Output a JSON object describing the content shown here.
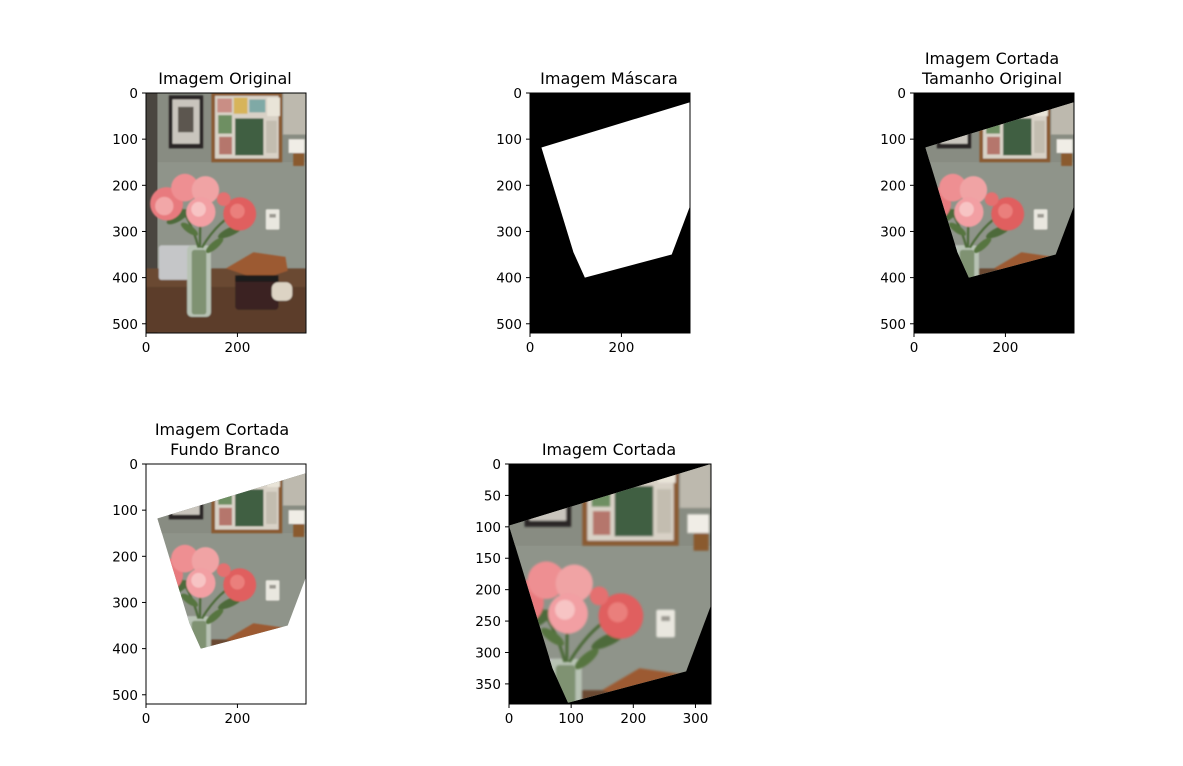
{
  "chart_data": [
    {
      "type": "image",
      "title": "Imagem Original",
      "xlim": [
        0,
        350
      ],
      "ylim": [
        520,
        0
      ],
      "xticks": [
        0,
        200
      ],
      "yticks": [
        0,
        100,
        200,
        300,
        400,
        500
      ]
    },
    {
      "type": "image",
      "title": "Imagem Máscara",
      "xlim": [
        0,
        350
      ],
      "ylim": [
        520,
        0
      ],
      "xticks": [
        0,
        200
      ],
      "yticks": [
        0,
        100,
        200,
        300,
        400,
        500
      ],
      "mask_polygon": [
        [
          25,
          118
        ],
        [
          350,
          20
        ],
        [
          350,
          245
        ],
        [
          310,
          350
        ],
        [
          120,
          400
        ],
        [
          95,
          345
        ]
      ]
    },
    {
      "type": "image",
      "title": "Imagem Cortada\nTamanho Original",
      "xlim": [
        0,
        350
      ],
      "ylim": [
        520,
        0
      ],
      "xticks": [
        0,
        200
      ],
      "yticks": [
        0,
        100,
        200,
        300,
        400,
        500
      ],
      "mask_polygon": [
        [
          25,
          118
        ],
        [
          350,
          20
        ],
        [
          350,
          245
        ],
        [
          310,
          350
        ],
        [
          120,
          400
        ],
        [
          95,
          345
        ]
      ]
    },
    {
      "type": "image",
      "title": "Imagem Cortada\nFundo Branco",
      "xlim": [
        0,
        350
      ],
      "ylim": [
        520,
        0
      ],
      "xticks": [
        0,
        200
      ],
      "yticks": [
        0,
        100,
        200,
        300,
        400,
        500
      ],
      "mask_polygon": [
        [
          25,
          118
        ],
        [
          350,
          20
        ],
        [
          350,
          245
        ],
        [
          310,
          350
        ],
        [
          120,
          400
        ],
        [
          95,
          345
        ]
      ]
    },
    {
      "type": "image",
      "title": "Imagem Cortada",
      "xlim": [
        0,
        325
      ],
      "ylim": [
        382,
        0
      ],
      "xticks": [
        0,
        100,
        200,
        300
      ],
      "yticks": [
        0,
        50,
        100,
        150,
        200,
        250,
        300,
        350
      ],
      "mask_polygon": [
        [
          0,
          98
        ],
        [
          325,
          0
        ],
        [
          325,
          225
        ],
        [
          285,
          330
        ],
        [
          95,
          380
        ],
        [
          70,
          325
        ]
      ]
    }
  ],
  "colors": {
    "wall": "#8f948a",
    "frame": "#8a5a33",
    "table": "#6b4a33",
    "flower": "#e8737a",
    "leaf": "#4d6b3a",
    "mask_background": "#000000",
    "mask_foreground": "#ffffff"
  }
}
